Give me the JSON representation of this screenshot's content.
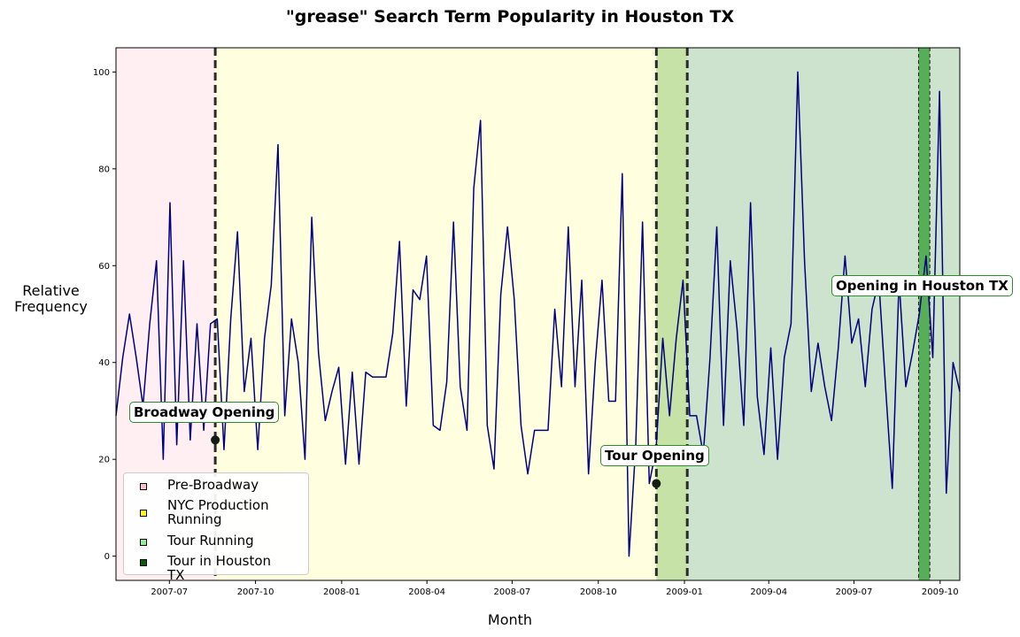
{
  "title": "\"grease\" Search Term Popularity in Houston TX",
  "chart_data": {
    "type": "line",
    "title": "\"grease\" Search Term Popularity in Houston TX",
    "xlabel": "Month",
    "ylabel": "Relative\nFrequency",
    "x_start": "2007-05-05",
    "x_end": "2009-10-22",
    "ylim": [
      -5,
      105
    ],
    "yticks": [
      0,
      20,
      40,
      60,
      80,
      100
    ],
    "xticks": [
      {
        "date": "2007-07-01",
        "label": "2007-07"
      },
      {
        "date": "2007-10-01",
        "label": "2007-10"
      },
      {
        "date": "2008-01-01",
        "label": "2008-01"
      },
      {
        "date": "2008-04-01",
        "label": "2008-04"
      },
      {
        "date": "2008-07-01",
        "label": "2008-07"
      },
      {
        "date": "2008-10-01",
        "label": "2008-10"
      },
      {
        "date": "2009-01-01",
        "label": "2009-01"
      },
      {
        "date": "2009-04-01",
        "label": "2009-04"
      },
      {
        "date": "2009-07-01",
        "label": "2009-07"
      },
      {
        "date": "2009-10-01",
        "label": "2009-10"
      }
    ],
    "grid": false,
    "legend_position": "lower-left",
    "line_color": "#00007f",
    "regions": [
      {
        "name": "Pre-Broadway",
        "start": "2007-05-05",
        "end": "2007-08-19",
        "color": "#ffc0cb",
        "alpha": 0.25,
        "legend_color": "#ffc0cb"
      },
      {
        "name": "NYC Production Running",
        "start": "2007-08-19",
        "end": "2008-12-02",
        "color": "#ffff66",
        "alpha": 0.2,
        "legend_color": "#ffff00"
      },
      {
        "name": "Tour Running",
        "start": "2008-12-02",
        "end": "2009-10-22",
        "color": "#2e8b2e",
        "alpha": 0.24,
        "legend_color": "#90ee90"
      },
      {
        "name": "Tour in Houston TX",
        "start": "2009-09-08",
        "end": "2009-09-20",
        "color": "#0a8a0a",
        "alpha": 0.6,
        "legend_color": "#006400"
      }
    ],
    "overlap_band": {
      "start": "2008-12-02",
      "end": "2009-01-04",
      "color": "#bfe07a",
      "alpha": 0.45
    },
    "vlines": [
      {
        "date": "2007-08-19",
        "style": "thick-dashed"
      },
      {
        "date": "2008-12-02",
        "style": "thick-dashed"
      },
      {
        "date": "2009-01-04",
        "style": "thick-dashed"
      },
      {
        "date": "2009-09-08",
        "style": "thin-dashed"
      },
      {
        "date": "2009-09-20",
        "style": "thin-dashed"
      }
    ],
    "markers": [
      {
        "date": "2007-08-19",
        "value": 24
      },
      {
        "date": "2008-12-02",
        "value": 15
      }
    ],
    "annotations": [
      {
        "text": "Broadway Opening"
      },
      {
        "text": "Tour Opening"
      },
      {
        "text": "Opening in Houston TX"
      }
    ],
    "series": [
      {
        "values": [
          29,
          41,
          50,
          41,
          31,
          48,
          61,
          20,
          73,
          23,
          61,
          24,
          48,
          26,
          48,
          49,
          22,
          49,
          67,
          34,
          45,
          22,
          45,
          56,
          85,
          29,
          49,
          40,
          20,
          70,
          42,
          28,
          34,
          39,
          19,
          38,
          19,
          38,
          37,
          37,
          37,
          46,
          65,
          31,
          55,
          53,
          62,
          27,
          26,
          36,
          69,
          35,
          26,
          76,
          90,
          27,
          18,
          54,
          68,
          53,
          27,
          17,
          26,
          26,
          26,
          51,
          35,
          68,
          35,
          57,
          17,
          40,
          57,
          32,
          32,
          79,
          0,
          23,
          69,
          15,
          22,
          45,
          29,
          45,
          57,
          29,
          29,
          21,
          41,
          68,
          27,
          61,
          47,
          27,
          73,
          33,
          21,
          43,
          20,
          41,
          48,
          100,
          61,
          34,
          44,
          35,
          28,
          43,
          62,
          44,
          49,
          35,
          51,
          57,
          35,
          14,
          57,
          35,
          42,
          50,
          62,
          41,
          96,
          13,
          40,
          34
        ]
      }
    ]
  }
}
